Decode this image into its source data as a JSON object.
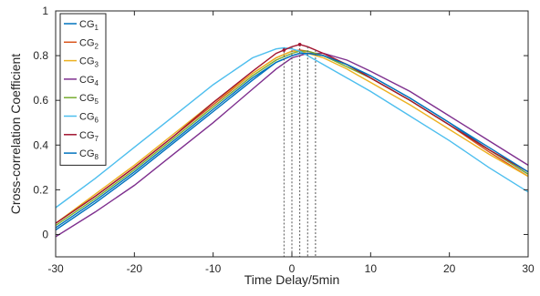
{
  "chart_data": {
    "type": "line",
    "xlabel": "Time Delay/5min",
    "ylabel": "Cross-correlation Coefficient",
    "xlim": [
      -30,
      30
    ],
    "ylim": [
      -0.1,
      1
    ],
    "xticks": [
      -30,
      -20,
      -10,
      0,
      10,
      20,
      30
    ],
    "yticks": [
      0,
      0.2,
      0.4,
      0.6,
      0.8,
      1
    ],
    "grid": false,
    "legend_position": "top-left",
    "peak_markers": {
      "x": [
        -1,
        0,
        1,
        2,
        3
      ],
      "style": "dotted"
    },
    "series": [
      {
        "name": "CG1",
        "label_main": "CG",
        "label_sub": "1",
        "color": "#0072BD",
        "x": [
          -30,
          -25,
          -20,
          -15,
          -10,
          -5,
          -2,
          0,
          1,
          2,
          4,
          7,
          10,
          15,
          20,
          25,
          30
        ],
        "y": [
          0.03,
          0.15,
          0.28,
          0.42,
          0.56,
          0.7,
          0.77,
          0.8,
          0.81,
          0.81,
          0.8,
          0.76,
          0.71,
          0.61,
          0.5,
          0.38,
          0.27
        ]
      },
      {
        "name": "CG2",
        "label_main": "CG",
        "label_sub": "2",
        "color": "#D95319",
        "x": [
          -30,
          -25,
          -20,
          -15,
          -10,
          -5,
          -2,
          0,
          1,
          2,
          4,
          7,
          10,
          15,
          20,
          25,
          30
        ],
        "y": [
          0.05,
          0.17,
          0.3,
          0.44,
          0.58,
          0.72,
          0.79,
          0.82,
          0.825,
          0.82,
          0.8,
          0.76,
          0.7,
          0.6,
          0.49,
          0.37,
          0.26
        ]
      },
      {
        "name": "CG3",
        "label_main": "CG",
        "label_sub": "3",
        "color": "#EDB120",
        "x": [
          -30,
          -25,
          -20,
          -15,
          -10,
          -5,
          -2,
          0,
          1,
          2,
          4,
          7,
          10,
          15,
          20,
          25,
          30
        ],
        "y": [
          0.05,
          0.18,
          0.31,
          0.45,
          0.59,
          0.72,
          0.79,
          0.82,
          0.82,
          0.81,
          0.79,
          0.74,
          0.68,
          0.58,
          0.47,
          0.36,
          0.26
        ]
      },
      {
        "name": "CG4",
        "label_main": "CG",
        "label_sub": "4",
        "color": "#7E2F8E",
        "x": [
          -30,
          -25,
          -20,
          -15,
          -10,
          -5,
          -2,
          0,
          1,
          2,
          4,
          7,
          10,
          15,
          20,
          25,
          30
        ],
        "y": [
          -0.01,
          0.1,
          0.22,
          0.36,
          0.5,
          0.65,
          0.74,
          0.79,
          0.8,
          0.81,
          0.81,
          0.78,
          0.73,
          0.64,
          0.53,
          0.42,
          0.31
        ]
      },
      {
        "name": "CG5",
        "label_main": "CG",
        "label_sub": "5",
        "color": "#77AC30",
        "x": [
          -30,
          -25,
          -20,
          -15,
          -10,
          -5,
          -2,
          0,
          1,
          2,
          4,
          7,
          10,
          15,
          20,
          25,
          30
        ],
        "y": [
          0.04,
          0.16,
          0.29,
          0.43,
          0.57,
          0.71,
          0.78,
          0.81,
          0.82,
          0.82,
          0.8,
          0.75,
          0.7,
          0.6,
          0.49,
          0.38,
          0.27
        ]
      },
      {
        "name": "CG6",
        "label_main": "CG",
        "label_sub": "6",
        "color": "#4DBEEE",
        "x": [
          -30,
          -25,
          -20,
          -15,
          -10,
          -5,
          -2,
          -1,
          0,
          1,
          2,
          4,
          7,
          10,
          15,
          20,
          25,
          30
        ],
        "y": [
          0.12,
          0.25,
          0.39,
          0.53,
          0.67,
          0.79,
          0.83,
          0.835,
          0.83,
          0.82,
          0.8,
          0.76,
          0.7,
          0.64,
          0.53,
          0.42,
          0.3,
          0.19
        ]
      },
      {
        "name": "CG7",
        "label_main": "CG",
        "label_sub": "7",
        "color": "#A2142F",
        "x": [
          -30,
          -25,
          -20,
          -15,
          -10,
          -5,
          -2,
          0,
          1,
          2,
          4,
          7,
          10,
          15,
          20,
          25,
          30
        ],
        "y": [
          0.05,
          0.17,
          0.3,
          0.44,
          0.59,
          0.73,
          0.81,
          0.84,
          0.85,
          0.84,
          0.81,
          0.76,
          0.7,
          0.6,
          0.49,
          0.38,
          0.28
        ]
      },
      {
        "name": "CG8",
        "label_main": "CG",
        "label_sub": "8",
        "color": "#0072BD",
        "x": [
          -30,
          -25,
          -20,
          -15,
          -10,
          -5,
          -2,
          0,
          1,
          2,
          4,
          7,
          10,
          15,
          20,
          25,
          30
        ],
        "y": [
          0.02,
          0.14,
          0.27,
          0.41,
          0.55,
          0.69,
          0.77,
          0.8,
          0.81,
          0.81,
          0.8,
          0.76,
          0.71,
          0.61,
          0.5,
          0.39,
          0.28
        ]
      }
    ]
  }
}
